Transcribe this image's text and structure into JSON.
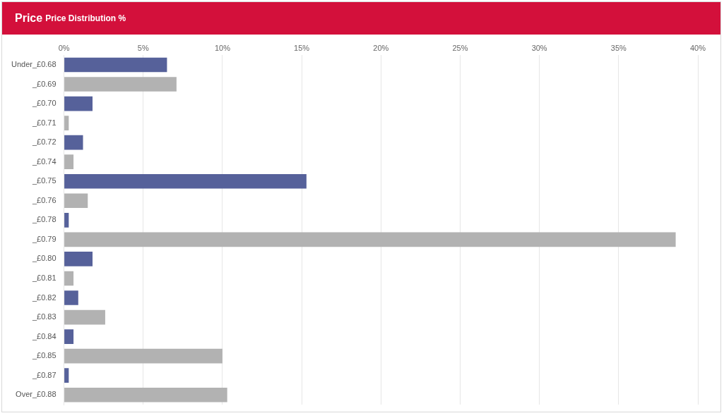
{
  "chart_data": {
    "type": "bar",
    "title": "Price",
    "subtitle": "Price Distribution %",
    "orientation": "horizontal",
    "categories": [
      "Under_£0.68",
      "_£0.69",
      "_£0.70",
      "_£0.71",
      "_£0.72",
      "_£0.74",
      "_£0.75",
      "_£0.76",
      "_£0.78",
      "_£0.79",
      "_£0.80",
      "_£0.81",
      "_£0.82",
      "_£0.83",
      "_£0.84",
      "_£0.85",
      "_£0.87",
      "Over_£0.88"
    ],
    "values": [
      6.5,
      7.1,
      1.8,
      0.3,
      1.2,
      0.6,
      15.3,
      1.5,
      0.3,
      38.6,
      1.8,
      0.6,
      0.9,
      2.6,
      0.6,
      10.0,
      0.3,
      10.3
    ],
    "colors": [
      "#56619a",
      "#b2b2b2",
      "#56619a",
      "#b2b2b2",
      "#56619a",
      "#b2b2b2",
      "#56619a",
      "#b2b2b2",
      "#56619a",
      "#b2b2b2",
      "#56619a",
      "#b2b2b2",
      "#56619a",
      "#b2b2b2",
      "#56619a",
      "#b2b2b2",
      "#56619a",
      "#b2b2b2"
    ],
    "xlim": [
      0,
      40
    ],
    "xticks": [
      {
        "value": 0,
        "label": "0%"
      },
      {
        "value": 5,
        "label": "5%"
      },
      {
        "value": 10,
        "label": "10%"
      },
      {
        "value": 15,
        "label": "15%"
      },
      {
        "value": 20,
        "label": "20%"
      },
      {
        "value": 25,
        "label": "25%"
      },
      {
        "value": 30,
        "label": "30%"
      },
      {
        "value": 35,
        "label": "35%"
      },
      {
        "value": 40,
        "label": "40%"
      }
    ],
    "grid": "x",
    "legend": false
  }
}
